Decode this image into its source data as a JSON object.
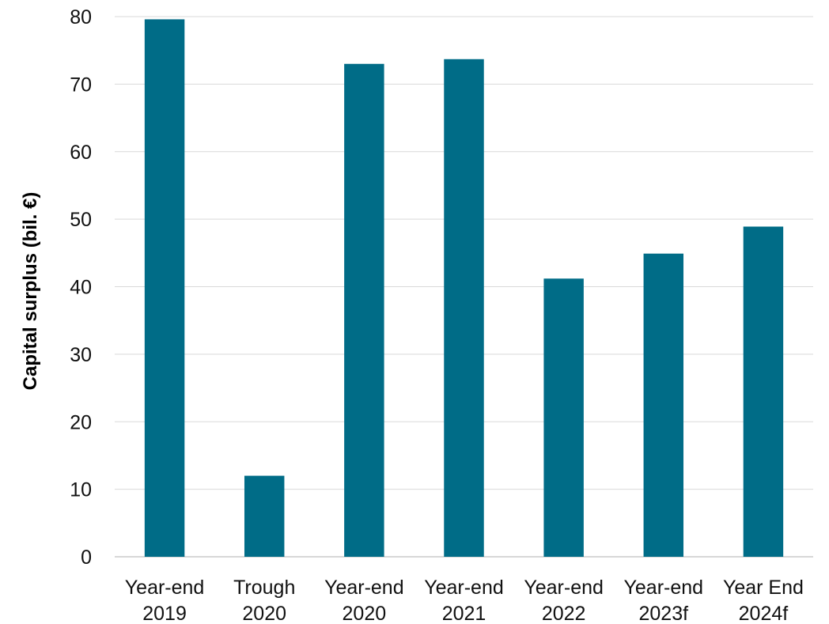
{
  "chart_data": {
    "type": "bar",
    "categories": [
      [
        "Year-end",
        "2019"
      ],
      [
        "Trough",
        "2020"
      ],
      [
        "Year-end",
        "2020"
      ],
      [
        "Year-end",
        "2021"
      ],
      [
        "Year-end",
        "2022"
      ],
      [
        "Year-end",
        "2023f"
      ],
      [
        "Year End",
        "2024f"
      ]
    ],
    "values": [
      79.6,
      12.0,
      73.0,
      73.7,
      41.2,
      44.9,
      48.9
    ],
    "ylabel": "Capital surplus (bil. €)",
    "xlabel": "",
    "title": "",
    "ylim": [
      0,
      80
    ],
    "yticks": [
      0,
      10,
      20,
      30,
      40,
      50,
      60,
      70,
      80
    ],
    "grid": true,
    "legend": "none",
    "bar_color": "#006C87",
    "grid_color": "#d9d9d9"
  }
}
